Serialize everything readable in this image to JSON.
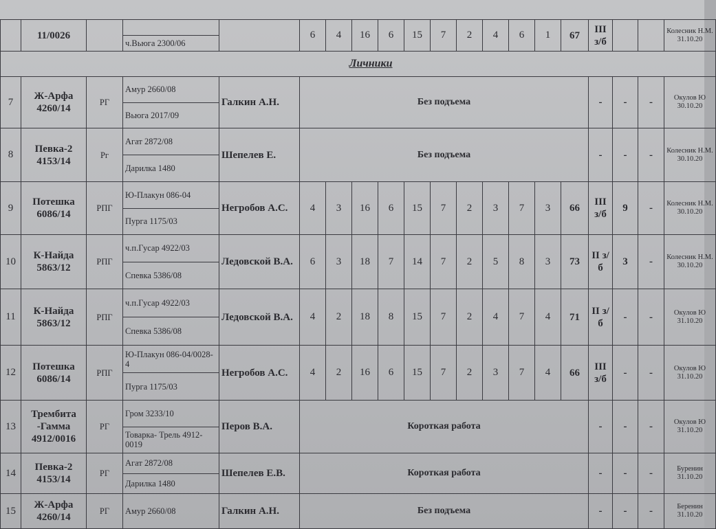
{
  "section_title": "Личники",
  "top_row": {
    "num": "",
    "name": "11/0026",
    "type": "",
    "parents": [
      "",
      "ч.Вьюга 2300/06"
    ],
    "owner": "",
    "scores": [
      "6",
      "4",
      "16",
      "6",
      "15",
      "7",
      "2",
      "4",
      "6",
      "1",
      "67"
    ],
    "diploma": "III з/б",
    "c2": "",
    "c3": "",
    "judge": "Колесник Н.М. 31.10.20"
  },
  "rows": [
    {
      "num": "7",
      "name": "Ж-Арфа 4260/14",
      "type": "РГ",
      "parents": [
        "Амур 2660/08",
        "Вьюга 2017/09"
      ],
      "owner": "Галкин А.Н.",
      "note": "Без подъема",
      "diploma": "-",
      "c2": "-",
      "c3": "-",
      "judge": "Окулов Ю 30.10.20"
    },
    {
      "num": "8",
      "name": "Певка-2 4153/14",
      "type": "Рг",
      "parents": [
        "Агат 2872/08",
        "Дарилка 1480"
      ],
      "owner": "Шепелев Е.",
      "note": "Без подъема",
      "diploma": "-",
      "c2": "-",
      "c3": "-",
      "judge": "Колесник Н.М. 30.10.20"
    },
    {
      "num": "9",
      "name": "Потешка 6086/14",
      "type": "РПГ",
      "parents": [
        "Ю-Плакун 086-04",
        "Пурга 1175/03"
      ],
      "owner": "Негробов А.С.",
      "scores": [
        "4",
        "3",
        "16",
        "6",
        "15",
        "7",
        "2",
        "3",
        "7",
        "3",
        "66"
      ],
      "diploma": "III з/б",
      "c2": "9",
      "c3": "-",
      "judge": "Колесник Н.М. 30.10.20"
    },
    {
      "num": "10",
      "name": "К-Найда 5863/12",
      "type": "РПГ",
      "parents": [
        "ч.п.Гусар 4922/03",
        "Спевка 5386/08"
      ],
      "owner": "Ледовской В.А.",
      "scores": [
        "6",
        "3",
        "18",
        "7",
        "14",
        "7",
        "2",
        "5",
        "8",
        "3",
        "73"
      ],
      "diploma": "II з/б",
      "c2": "3",
      "c3": "-",
      "judge": "Колесник Н.М. 30.10.20"
    },
    {
      "num": "11",
      "name": "К-Найда 5863/12",
      "type": "РПГ",
      "parents": [
        "ч.п.Гусар 4922/03",
        "Спевка 5386/08"
      ],
      "owner": "Ледовской В.А.",
      "scores": [
        "4",
        "2",
        "18",
        "8",
        "15",
        "7",
        "2",
        "4",
        "7",
        "4",
        "71"
      ],
      "diploma": "II з/б",
      "c2": "-",
      "c3": "-",
      "judge": "Окулов Ю 31.10.20"
    },
    {
      "num": "12",
      "name": "Потешка 6086/14",
      "type": "РПГ",
      "parents": [
        "Ю-Плакун 086-04/0028-4",
        "Пурга 1175/03"
      ],
      "owner": "Негробов А.С.",
      "scores": [
        "4",
        "2",
        "16",
        "6",
        "15",
        "7",
        "2",
        "3",
        "7",
        "4",
        "66"
      ],
      "diploma": "III з/б",
      "c2": "-",
      "c3": "-",
      "judge": "Окулов Ю 31.10.20"
    },
    {
      "num": "13",
      "name": "Трембита -Гамма 4912/0016",
      "type": "РГ",
      "parents": [
        "Гром 3233/10",
        "Товарка- Трель 4912-0019"
      ],
      "owner": "Перов В.А.",
      "note": "Короткая работа",
      "diploma": "-",
      "c2": "-",
      "c3": "-",
      "judge": "Окулов Ю 31.10.20"
    },
    {
      "num": "14",
      "name": "Певка-2 4153/14",
      "type": "РГ",
      "parents": [
        "Агат 2872/08",
        "Дарилка 1480"
      ],
      "owner": "Шепелев Е.В.",
      "note": "Короткая работа",
      "diploma": "-",
      "c2": "-",
      "c3": "-",
      "judge": "Буренин 31.10.20"
    },
    {
      "num": "15",
      "name": "Ж-Арфа 4260/14",
      "type": "РГ",
      "parents": [
        "Амур 2660/08"
      ],
      "owner": "Галкин А.Н.",
      "note": "Без подъема",
      "diploma": "-",
      "c2": "-",
      "c3": "-",
      "judge": "Беренин 31.10.20"
    }
  ]
}
